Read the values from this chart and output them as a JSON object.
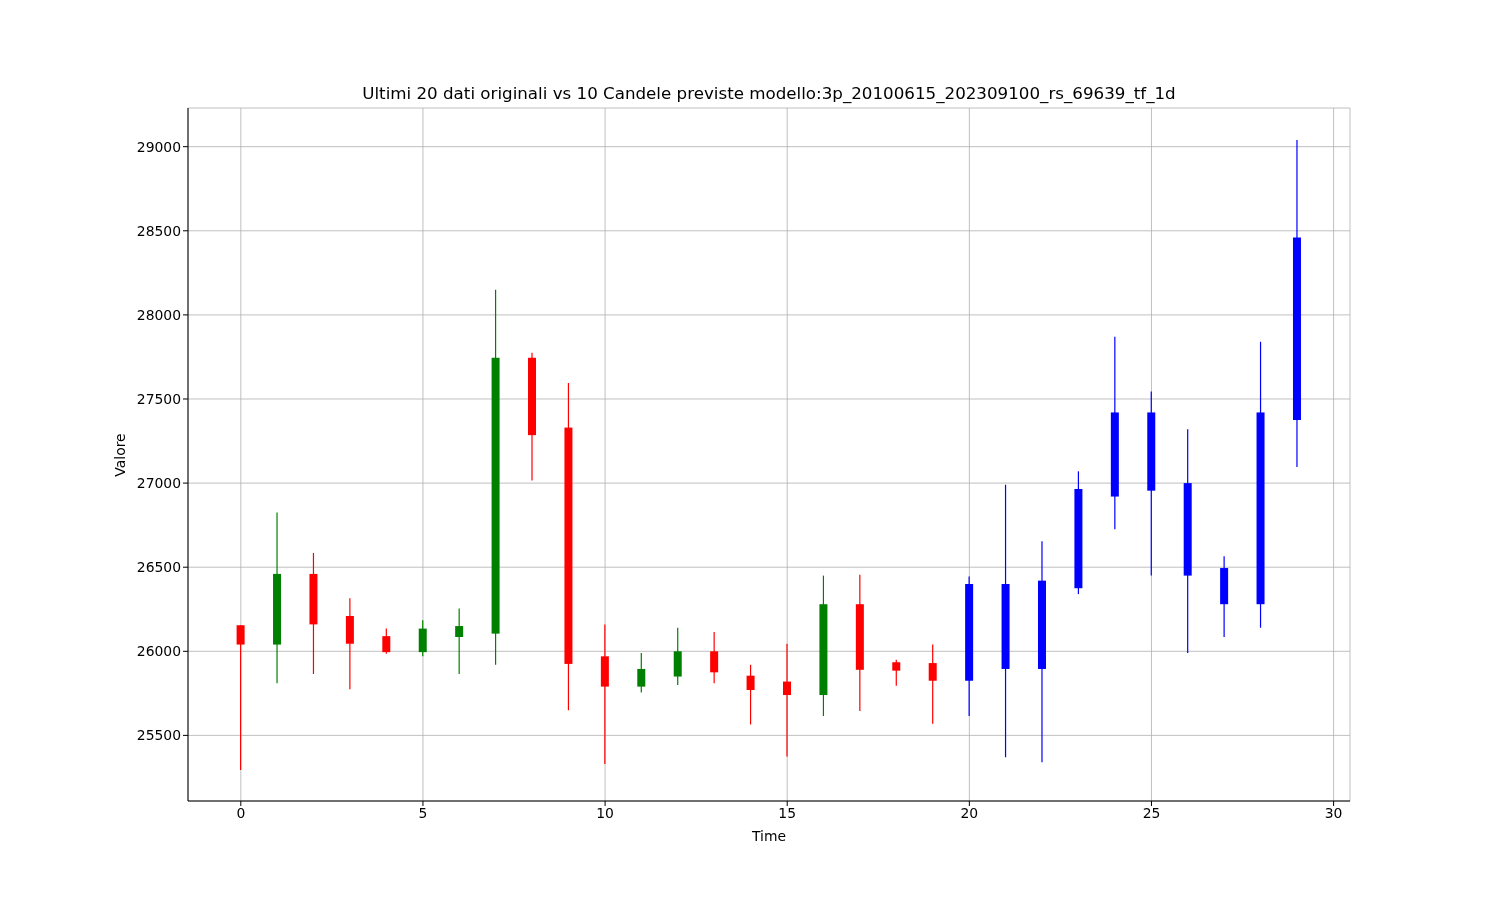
{
  "chart_data": {
    "type": "candlestick",
    "title": "Ultimi 20 dati originali vs 10 Candele previste modello:3p_20100615_202309100_rs_69639_tf_1d",
    "xlabel": "Time",
    "ylabel": "Valore",
    "x": [
      0,
      1,
      2,
      3,
      4,
      5,
      6,
      7,
      8,
      9,
      10,
      11,
      12,
      13,
      14,
      15,
      16,
      17,
      18,
      19,
      20,
      21,
      22,
      23,
      24,
      25,
      26,
      27,
      28,
      29
    ],
    "ohlc": [
      [
        26155,
        26155,
        25295,
        26040
      ],
      [
        26040,
        26825,
        25810,
        26460
      ],
      [
        26460,
        26585,
        25865,
        26160
      ],
      [
        26210,
        26315,
        25775,
        26045
      ],
      [
        26090,
        26135,
        25985,
        25995
      ],
      [
        25995,
        26185,
        25970,
        26135
      ],
      [
        26085,
        26255,
        25865,
        26150
      ],
      [
        26105,
        28150,
        25920,
        27745
      ],
      [
        27745,
        27775,
        27015,
        27285
      ],
      [
        27330,
        27595,
        25650,
        25925
      ],
      [
        25970,
        26160,
        25330,
        25790
      ],
      [
        25790,
        25990,
        25755,
        25895
      ],
      [
        25850,
        26140,
        25800,
        26000
      ],
      [
        26000,
        26115,
        25810,
        25875
      ],
      [
        25855,
        25920,
        25565,
        25770
      ],
      [
        25820,
        26045,
        25375,
        25740
      ],
      [
        25740,
        26450,
        25615,
        26280
      ],
      [
        26280,
        26455,
        25645,
        25890
      ],
      [
        25935,
        25950,
        25795,
        25885
      ],
      [
        25930,
        26040,
        25570,
        25825
      ],
      [
        25825,
        26445,
        25615,
        26400
      ],
      [
        26400,
        26990,
        25370,
        25895
      ],
      [
        25895,
        26655,
        25340,
        26420
      ],
      [
        26375,
        27070,
        26340,
        26965
      ],
      [
        26920,
        27870,
        26725,
        27420
      ],
      [
        27420,
        27545,
        26450,
        26955
      ],
      [
        27000,
        27320,
        25990,
        26450
      ],
      [
        26495,
        26565,
        26085,
        26280
      ],
      [
        26280,
        27840,
        26140,
        27420
      ],
      [
        27375,
        29040,
        27095,
        28460
      ]
    ],
    "colors": [
      "#ff0000",
      "#008000",
      "#ff0000",
      "#ff0000",
      "#ff0000",
      "#008000",
      "#008000",
      "#008000",
      "#ff0000",
      "#ff0000",
      "#ff0000",
      "#008000",
      "#008000",
      "#ff0000",
      "#ff0000",
      "#ff0000",
      "#008000",
      "#ff0000",
      "#ff0000",
      "#ff0000",
      "#0000ff",
      "#0000ff",
      "#0000ff",
      "#0000ff",
      "#0000ff",
      "#0000ff",
      "#0000ff",
      "#0000ff",
      "#0000ff",
      "#0000ff"
    ],
    "xlim": [
      -1.45,
      30.45
    ],
    "ylim": [
      25110,
      29230
    ],
    "xticks": [
      0,
      5,
      10,
      15,
      20,
      25,
      30
    ],
    "yticks": [
      25500,
      26000,
      26500,
      27000,
      27500,
      28000,
      28500,
      29000
    ],
    "grid": true
  }
}
